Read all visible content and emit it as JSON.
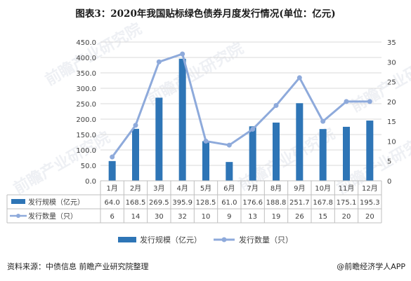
{
  "page": {
    "title": "图表3：2020年我国贴标绿色债券月度发行情况(单位：亿元)",
    "source": "资料来源：中债信息 前瞻产业研究院整理",
    "credit": "@前瞻经济学人APP",
    "watermark": "前瞻产业研究院"
  },
  "colors": {
    "bar": "#2e75b6",
    "line": "#8eaadb",
    "grid": "#d9d9d9",
    "axis": "#bfbfbf"
  },
  "chart_data": {
    "type": "bar",
    "title": "2020年我国贴标绿色债券月度发行情况(单位：亿元)",
    "categories": [
      "1月",
      "2月",
      "3月",
      "4月",
      "5月",
      "6月",
      "7月",
      "8月",
      "9月",
      "10月",
      "11月",
      "12月"
    ],
    "series": [
      {
        "name": "发行规模（亿元）",
        "type": "bar",
        "axis": "left",
        "values": [
          64.0,
          168.5,
          269.5,
          395.9,
          128.5,
          61.0,
          176.6,
          188.8,
          251.7,
          167.8,
          175.1,
          195.3
        ],
        "labels": [
          "64.0",
          "168.5",
          "269.5",
          "395.9",
          "128.5",
          "61.0",
          "176.6",
          "188.8",
          "251.7",
          "167.8",
          "175.1",
          "195.3"
        ]
      },
      {
        "name": "发行数量（只）",
        "type": "line",
        "axis": "right",
        "values": [
          6,
          14,
          30,
          32,
          10,
          9,
          13,
          19,
          26,
          15,
          20,
          20
        ],
        "labels": [
          "6",
          "14",
          "30",
          "32",
          "10",
          "9",
          "13",
          "19",
          "26",
          "15",
          "20",
          "20"
        ]
      }
    ],
    "y_left": {
      "min": 0,
      "max": 450,
      "step": 50,
      "ticks": [
        "0.0",
        "50.0",
        "100.0",
        "150.0",
        "200.0",
        "250.0",
        "300.0",
        "350.0",
        "400.0",
        "450.0"
      ]
    },
    "y_right": {
      "min": 0,
      "max": 35,
      "step": 5,
      "ticks": [
        "0",
        "5",
        "10",
        "15",
        "20",
        "25",
        "30",
        "35"
      ]
    },
    "table_labels": [
      "发行规模（亿元）",
      "发行数量（只）"
    ],
    "legend": [
      "发行规模（亿元）",
      "发行数量（只）"
    ],
    "legend_position": "bottom",
    "grid": true
  }
}
